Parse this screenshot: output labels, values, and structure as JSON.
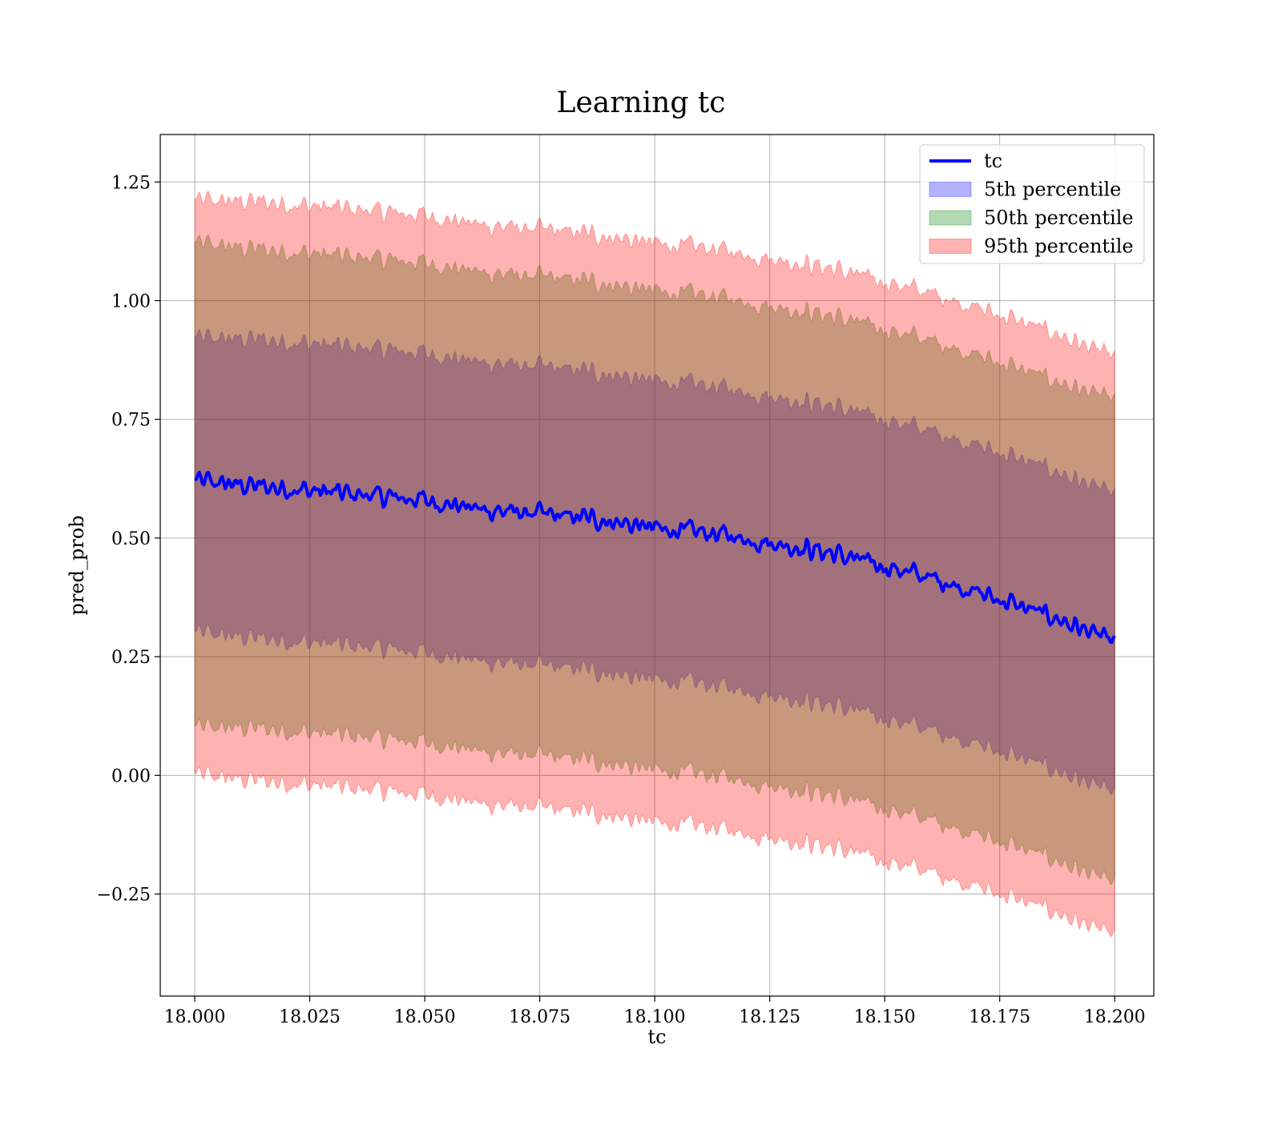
{
  "chart_data": {
    "type": "line",
    "title": "Learning tc",
    "xlabel": "tc",
    "ylabel": "pred_prob",
    "xlim": [
      17.9925,
      18.2085
    ],
    "ylim": [
      -0.465,
      1.35
    ],
    "xticks": [
      {
        "value": 18.0,
        "label": "18.000"
      },
      {
        "value": 18.025,
        "label": "18.025"
      },
      {
        "value": 18.05,
        "label": "18.050"
      },
      {
        "value": 18.075,
        "label": "18.075"
      },
      {
        "value": 18.1,
        "label": "18.100"
      },
      {
        "value": 18.125,
        "label": "18.125"
      },
      {
        "value": 18.15,
        "label": "18.150"
      },
      {
        "value": 18.175,
        "label": "18.175"
      },
      {
        "value": 18.2,
        "label": "18.200"
      }
    ],
    "yticks": [
      {
        "value": -0.25,
        "label": "−0.25"
      },
      {
        "value": 0.0,
        "label": "0.00"
      },
      {
        "value": 0.25,
        "label": "0.25"
      },
      {
        "value": 0.5,
        "label": "0.50"
      },
      {
        "value": 0.75,
        "label": "0.75"
      },
      {
        "value": 1.0,
        "label": "1.00"
      },
      {
        "value": 1.25,
        "label": "1.25"
      }
    ],
    "grid": true,
    "legend_position": "top-right",
    "x": [
      18.0,
      18.0125,
      18.025,
      18.0375,
      18.05,
      18.0625,
      18.075,
      18.0875,
      18.1,
      18.1125,
      18.125,
      18.1375,
      18.15,
      18.1625,
      18.175,
      18.1875,
      18.2
    ],
    "series": [
      {
        "name": "tc",
        "kind": "line",
        "color": "#0000ff",
        "values": [
          0.62,
          0.61,
          0.6,
          0.59,
          0.58,
          0.56,
          0.55,
          0.54,
          0.52,
          0.51,
          0.49,
          0.47,
          0.44,
          0.41,
          0.37,
          0.33,
          0.28
        ]
      },
      {
        "name": "5th percentile",
        "kind": "band",
        "color": "#0000ff",
        "upper": [
          0.92,
          0.92,
          0.91,
          0.9,
          0.89,
          0.87,
          0.86,
          0.85,
          0.83,
          0.82,
          0.8,
          0.78,
          0.75,
          0.72,
          0.68,
          0.64,
          0.59
        ],
        "lower": [
          0.3,
          0.29,
          0.28,
          0.27,
          0.26,
          0.24,
          0.23,
          0.22,
          0.2,
          0.19,
          0.17,
          0.15,
          0.12,
          0.09,
          0.05,
          0.01,
          -0.04
        ]
      },
      {
        "name": "50th percentile",
        "kind": "band",
        "color": "#008000",
        "upper": [
          1.12,
          1.11,
          1.1,
          1.09,
          1.08,
          1.06,
          1.05,
          1.04,
          1.02,
          1.01,
          0.99,
          0.97,
          0.94,
          0.91,
          0.87,
          0.83,
          0.79
        ],
        "lower": [
          0.1,
          0.1,
          0.09,
          0.08,
          0.07,
          0.05,
          0.04,
          0.03,
          0.01,
          0.0,
          -0.02,
          -0.04,
          -0.07,
          -0.1,
          -0.14,
          -0.18,
          -0.23
        ]
      },
      {
        "name": "95th percentile",
        "kind": "band",
        "color": "#ff0000",
        "upper": [
          1.21,
          1.21,
          1.2,
          1.19,
          1.18,
          1.16,
          1.15,
          1.14,
          1.12,
          1.11,
          1.09,
          1.07,
          1.04,
          1.01,
          0.97,
          0.93,
          0.88
        ],
        "lower": [
          0.0,
          -0.01,
          -0.02,
          -0.03,
          -0.04,
          -0.06,
          -0.07,
          -0.08,
          -0.1,
          -0.11,
          -0.13,
          -0.15,
          -0.18,
          -0.21,
          -0.25,
          -0.29,
          -0.34
        ]
      }
    ]
  }
}
